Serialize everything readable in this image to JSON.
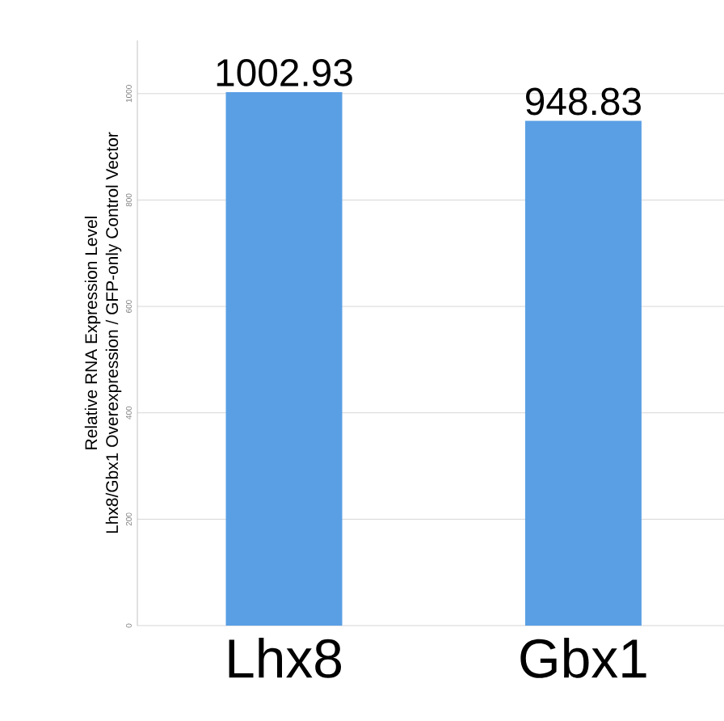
{
  "chart_data": {
    "type": "bar",
    "ylabel": "Relative RNA Expression Level\nLhx8/Gbx1 Overexpression / GFP-only Control Vector",
    "categories": [
      "Lhx8",
      "Gbx1"
    ],
    "values": [
      1002.93,
      948.83
    ],
    "color": "#5a9fe4",
    "data_labels": true,
    "ylim": [
      0,
      1100
    ],
    "yticks": [
      0,
      200,
      400,
      600,
      800,
      1000
    ],
    "grid": "y"
  }
}
